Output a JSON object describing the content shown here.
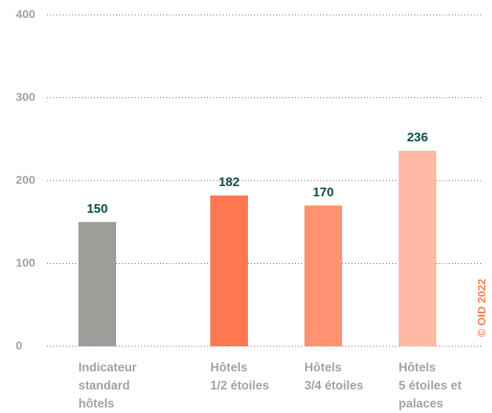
{
  "chart_data": {
    "type": "bar",
    "categories": [
      "Indicateur\nstandard\nhôtels",
      "Hôtels\n1/2 étoiles",
      "Hôtels\n3/4 étoiles",
      "Hôtels\n5 étoiles et\npalaces"
    ],
    "values": [
      150,
      182,
      170,
      236
    ],
    "colors": [
      "#9d9d9a",
      "#ff7751",
      "#ff9371",
      "#ffbaa5"
    ],
    "ylim": [
      0,
      400
    ],
    "yticks": [
      0,
      100,
      200,
      300,
      400
    ],
    "grid": true,
    "credit": "© OID 2022"
  }
}
